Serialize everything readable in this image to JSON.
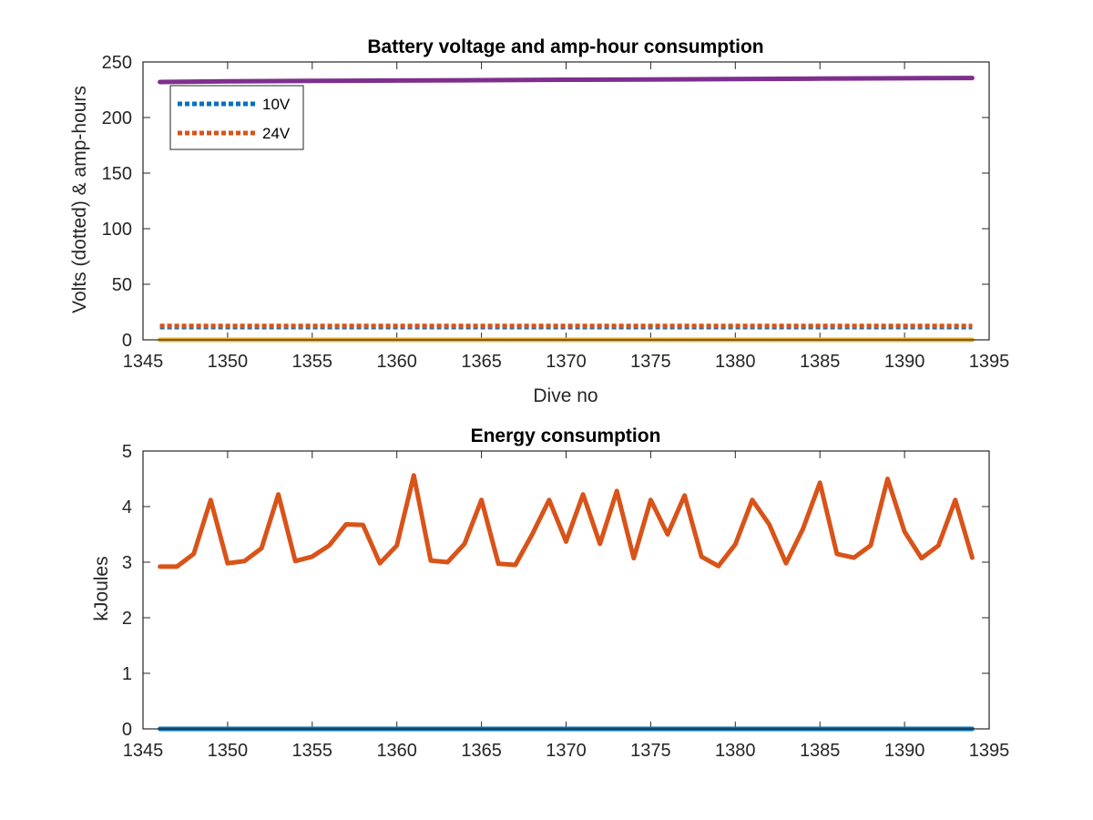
{
  "chart_data": [
    {
      "type": "line",
      "title": "Battery voltage and amp-hour consumption",
      "xlabel": "Dive no",
      "ylabel": "Volts (dotted) & amp-hours",
      "xlim": [
        1345,
        1395
      ],
      "ylim": [
        0,
        250
      ],
      "xticks": [
        "1345",
        "1350",
        "1355",
        "1360",
        "1365",
        "1370",
        "1375",
        "1380",
        "1385",
        "1390",
        "1395"
      ],
      "yticks": [
        "0",
        "50",
        "100",
        "150",
        "200",
        "250"
      ],
      "legend": {
        "placement": "top-left",
        "entries": [
          "10V",
          "24V"
        ]
      },
      "series": [
        {
          "name": "10V",
          "style": "dotted",
          "color": "#0072BD",
          "x": [
            1346,
            1394
          ],
          "y": [
            11.5,
            11.5
          ]
        },
        {
          "name": "24V",
          "style": "dotted",
          "color": "#D95319",
          "x": [
            1346,
            1394
          ],
          "y": [
            12.5,
            12.5
          ]
        },
        {
          "style": "solid",
          "color": "#EDB120",
          "x": [
            1346,
            1394
          ],
          "y": [
            0,
            0
          ]
        },
        {
          "style": "solid",
          "color": "#7E2F8E",
          "x": [
            1346,
            1350,
            1355,
            1360,
            1365,
            1370,
            1375,
            1380,
            1385,
            1390,
            1394
          ],
          "y": [
            232,
            232.5,
            233,
            233.3,
            233.6,
            234,
            234.3,
            234.6,
            235,
            235.3,
            235.6
          ]
        }
      ]
    },
    {
      "type": "line",
      "title": "Energy consumption",
      "xlabel": "",
      "ylabel": "kJoules",
      "xlim": [
        1345,
        1395
      ],
      "ylim": [
        0,
        5
      ],
      "xticks": [
        "1345",
        "1350",
        "1355",
        "1360",
        "1365",
        "1370",
        "1375",
        "1380",
        "1385",
        "1390",
        "1395"
      ],
      "yticks": [
        "0",
        "1",
        "2",
        "3",
        "4",
        "5"
      ],
      "series": [
        {
          "style": "solid",
          "color": "#D95319",
          "x": [
            1346,
            1347,
            1348,
            1349,
            1350,
            1351,
            1352,
            1353,
            1354,
            1355,
            1356,
            1357,
            1358,
            1359,
            1360,
            1361,
            1362,
            1363,
            1364,
            1365,
            1366,
            1367,
            1368,
            1369,
            1370,
            1371,
            1372,
            1373,
            1374,
            1375,
            1376,
            1377,
            1378,
            1379,
            1380,
            1381,
            1382,
            1383,
            1384,
            1385,
            1386,
            1387,
            1388,
            1389,
            1390,
            1391,
            1392,
            1393,
            1394
          ],
          "y": [
            2.92,
            2.92,
            3.15,
            4.12,
            2.98,
            3.02,
            3.25,
            4.22,
            3.02,
            3.1,
            3.3,
            3.68,
            3.67,
            2.98,
            3.3,
            4.56,
            3.03,
            3.0,
            3.33,
            4.12,
            2.97,
            2.95,
            3.5,
            4.12,
            3.37,
            4.22,
            3.33,
            4.28,
            3.07,
            4.12,
            3.5,
            4.2,
            3.1,
            2.93,
            3.32,
            4.12,
            3.68,
            2.98,
            3.6,
            4.43,
            3.15,
            3.08,
            3.3,
            4.5,
            3.55,
            3.07,
            3.3,
            4.12,
            3.08
          ]
        },
        {
          "style": "solid",
          "color": "#0072BD",
          "x": [
            1346,
            1394
          ],
          "y": [
            0,
            0
          ]
        }
      ]
    }
  ]
}
